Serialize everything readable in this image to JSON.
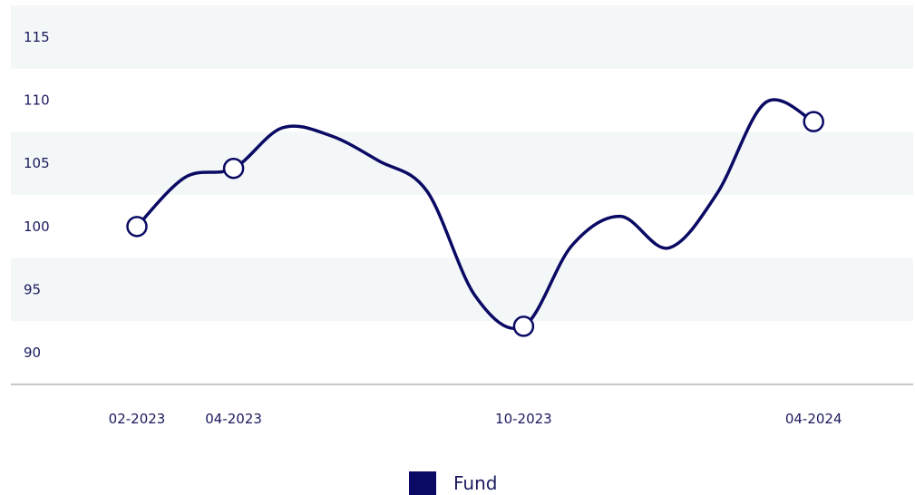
{
  "chart_data": {
    "type": "line",
    "y_ticks": [
      "115",
      "110",
      "105",
      "100",
      "95",
      "90"
    ],
    "y_values": [
      115,
      110,
      105,
      100,
      95,
      90
    ],
    "x_ticks": [
      "02-2023",
      "04-2023",
      "10-2023",
      "04-2024"
    ],
    "series": [
      {
        "name": "Fund",
        "color": "#0a0a64",
        "points": [
          {
            "x": "02-2023",
            "y": 100.0
          },
          {
            "x": "03-2023",
            "y": 103.9
          },
          {
            "x": "04-2023",
            "y": 104.6
          },
          {
            "x": "05-2023",
            "y": 107.8
          },
          {
            "x": "06-2023",
            "y": 107.2
          },
          {
            "x": "07-2023",
            "y": 105.2
          },
          {
            "x": "08-2023",
            "y": 102.8
          },
          {
            "x": "09-2023",
            "y": 94.5
          },
          {
            "x": "10-2023",
            "y": 92.1
          },
          {
            "x": "11-2023",
            "y": 98.5
          },
          {
            "x": "12-2023",
            "y": 100.8
          },
          {
            "x": "01-2024",
            "y": 98.3
          },
          {
            "x": "02-2024",
            "y": 102.6
          },
          {
            "x": "03-2024",
            "y": 109.8
          },
          {
            "x": "04-2024",
            "y": 108.3
          }
        ],
        "markers_at": [
          "02-2023",
          "04-2023",
          "10-2023",
          "04-2024"
        ]
      }
    ],
    "ylim": [
      87.5,
      117.5
    ],
    "band_color": "#f3f7f7",
    "axis_color": "#c8c8c8",
    "text_color": "#1a1a5e",
    "legend": {
      "label": "Fund",
      "position": "bottom-center"
    }
  }
}
